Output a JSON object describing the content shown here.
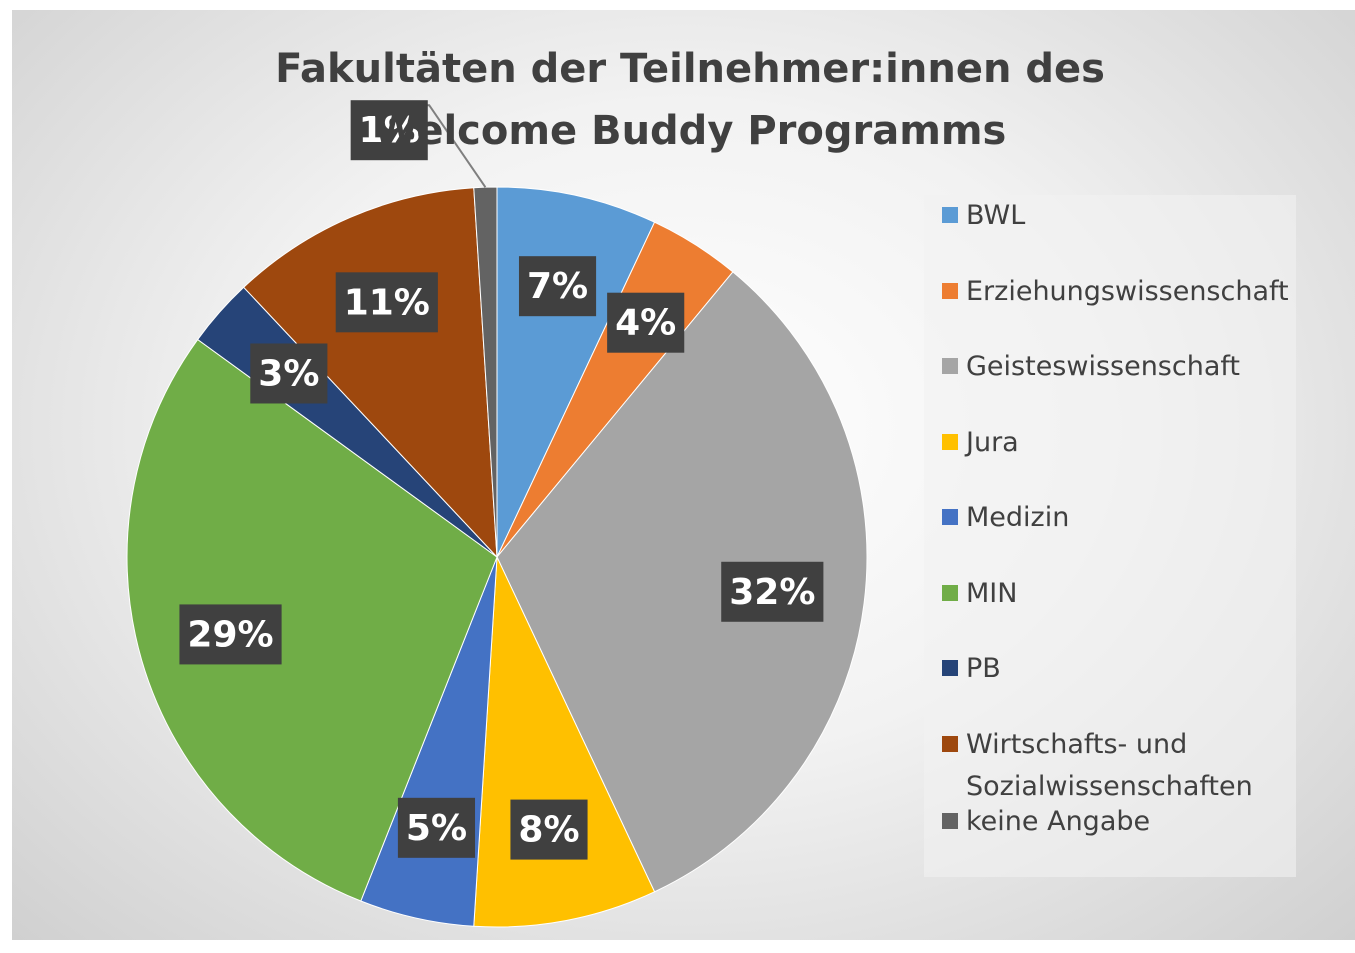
{
  "chart_data": {
    "type": "pie",
    "title": "Fakultäten der Teilnehmer:innen des Welcome Buddy Programms",
    "categories": [
      "BWL",
      "Erziehungswissenschaft",
      "Geisteswissenschaft",
      "Jura",
      "Medizin",
      "MIN",
      "PB",
      "Wirtschafts- und Sozialwissenschaften",
      "keine Angabe"
    ],
    "values": [
      7,
      4,
      32,
      8,
      5,
      29,
      3,
      11,
      1
    ],
    "value_labels": [
      "7%",
      "4%",
      "32%",
      "8%",
      "5%",
      "29%",
      "3%",
      "11%",
      "1%"
    ],
    "colors": [
      "#5b9bd5",
      "#ed7d31",
      "#a5a5a5",
      "#ffc000",
      "#4472c4",
      "#70ad47",
      "#264478",
      "#9e480e",
      "#636363"
    ],
    "legend": "right"
  }
}
